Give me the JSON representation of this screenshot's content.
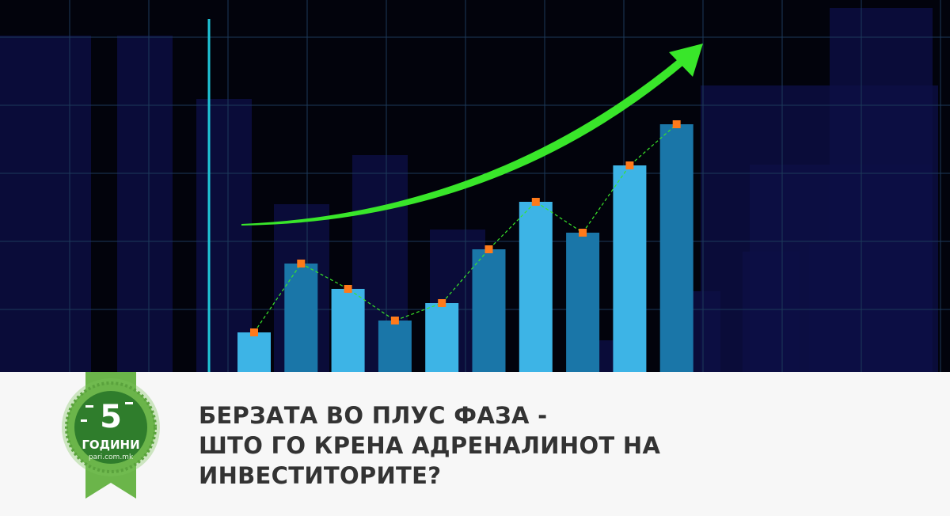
{
  "headline": {
    "lines": [
      "БЕРЗАТА ВО ПЛУС ФАЗА -",
      "ШТО ГО КРЕНА АДРЕНАЛИНОТ НА",
      "ИНВЕСТИТОРИТЕ?"
    ]
  },
  "badge": {
    "number": "5",
    "label": "ГОДИНИ",
    "site": "pari.com.mk",
    "color": "#3f8f34"
  },
  "colors": {
    "background": "#02030c",
    "bar_light": "#3db4e6",
    "bar_dark": "#1a76a8",
    "arrow": "#39e62a",
    "marker": "#ff7a1a"
  }
}
